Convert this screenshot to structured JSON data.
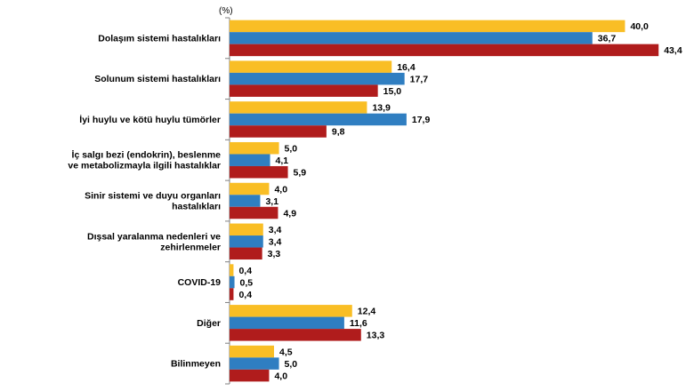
{
  "chart_data": {
    "type": "bar",
    "orientation": "horizontal",
    "unit_label": "(%)",
    "categories": [
      [
        "Dolaşım sistemi hastalıkları"
      ],
      [
        "Solunum sistemi hastalıkları"
      ],
      [
        "İyi huylu ve kötü huylu tümörler"
      ],
      [
        "İç salgı bezi (endokrin), beslenme",
        "ve metabolizmayla ilgili hastalıklar"
      ],
      [
        "Sinir sistemi ve duyu organları",
        "hastalıkları"
      ],
      [
        "Dışsal yaralanma nedenleri ve",
        "zehirlenmeler"
      ],
      [
        "COVID-19"
      ],
      [
        "Diğer"
      ],
      [
        "Bilinmeyen"
      ]
    ],
    "series": [
      {
        "color": "#F9BE25",
        "values": [
          40.0,
          16.4,
          13.9,
          5.0,
          4.0,
          3.4,
          0.4,
          12.4,
          4.5
        ],
        "labels": [
          "40,0",
          "16,4",
          "13,9",
          "5,0",
          "4,0",
          "3,4",
          "0,4",
          "12,4",
          "4,5"
        ]
      },
      {
        "color": "#2F7EC1",
        "values": [
          36.7,
          17.7,
          17.9,
          4.1,
          3.1,
          3.4,
          0.5,
          11.6,
          5.0
        ],
        "labels": [
          "36,7",
          "17,7",
          "17,9",
          "4,1",
          "3,1",
          "3,4",
          "0,5",
          "11,6",
          "5,0"
        ]
      },
      {
        "color": "#B01C1C",
        "values": [
          43.4,
          15.0,
          9.8,
          5.9,
          4.9,
          3.3,
          0.4,
          13.3,
          4.0
        ],
        "labels": [
          "43,4",
          "15,0",
          "9,8",
          "5,9",
          "4,9",
          "3,3",
          "0,4",
          "13,3",
          "4,0"
        ]
      }
    ],
    "xlim": [
      0,
      45
    ],
    "grid": false,
    "legend": "none"
  }
}
